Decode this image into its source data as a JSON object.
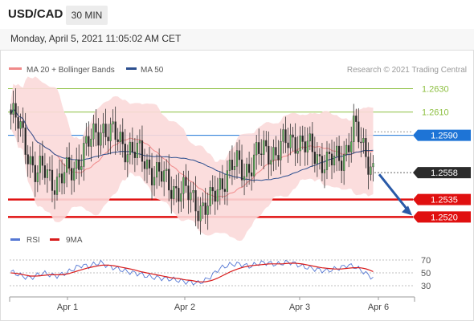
{
  "header": {
    "pair": "USD/CAD",
    "timeframe": "30 MIN",
    "timestamp": "Monday, April 5, 2021 11:05:02 AM CET"
  },
  "legend": {
    "ma20": {
      "label": "MA 20 + Bollinger Bands",
      "color": "#f08a8a"
    },
    "ma50": {
      "label": "MA 50",
      "color": "#2c4f8f"
    },
    "credit": "Research © 2021 Trading Central"
  },
  "colors": {
    "bull": "#55b055",
    "bear": "#222222",
    "band": "#fbd9d9",
    "support": "#e01010",
    "current": "#1e74d6",
    "resistance_green": "#8cbf3f",
    "arrow": "#2a5aa8"
  },
  "chart_data": {
    "type": "candlestick",
    "x_ticks": [
      "Apr 1",
      "Apr 2",
      "Apr 3",
      "Apr 6"
    ],
    "y_range": [
      1.2512,
      1.264
    ],
    "current_price": "1.2558",
    "levels": [
      {
        "value": 1.263,
        "label": "1.2630",
        "kind": "resistance-thin",
        "color": "#8cbf3f"
      },
      {
        "value": 1.261,
        "label": "1.2610",
        "kind": "resistance-thin",
        "color": "#8cbf3f"
      },
      {
        "value": 1.259,
        "label": "1.2590",
        "kind": "current-resistance",
        "color": "#1e74d6"
      },
      {
        "value": 1.2535,
        "label": "1.2535",
        "kind": "support",
        "color": "#e01010"
      },
      {
        "value": 1.252,
        "label": "1.2520",
        "kind": "support",
        "color": "#e01010"
      }
    ],
    "price_path": [
      1.2608,
      1.26,
      1.2588,
      1.257,
      1.2555,
      1.256,
      1.2556,
      1.255,
      1.2554,
      1.2558,
      1.2565,
      1.2575,
      1.2582,
      1.259,
      1.2598,
      1.2593,
      1.2588,
      1.2585,
      1.258,
      1.2576,
      1.2572,
      1.2566,
      1.256,
      1.2555,
      1.255,
      1.2546,
      1.2544,
      1.254,
      1.2536,
      1.253,
      1.2528,
      1.2532,
      1.2545,
      1.2555,
      1.2562,
      1.2564,
      1.256,
      1.2565,
      1.2572,
      1.2576,
      1.2578,
      1.2575,
      1.258,
      1.2585,
      1.2588,
      1.2582,
      1.2578,
      1.2575,
      1.257,
      1.2566,
      1.2568,
      1.2572,
      1.258,
      1.2595,
      1.2585,
      1.2575,
      1.256
    ],
    "rsi": {
      "label": "RSI",
      "ma_label": "9MA",
      "rsi_color": "#5578d4",
      "ma_color": "#d81c1c",
      "levels": [
        70,
        50,
        30
      ],
      "level_labels": [
        "70",
        "50",
        "30"
      ],
      "values": [
        52,
        48,
        44,
        42,
        46,
        50,
        47,
        45,
        48,
        52,
        58,
        62,
        60,
        64,
        66,
        60,
        58,
        55,
        52,
        50,
        48,
        45,
        43,
        42,
        41,
        40,
        38,
        36,
        35,
        34,
        38,
        45,
        55,
        60,
        63,
        64,
        62,
        60,
        64,
        66,
        65,
        63,
        65,
        67,
        64,
        60,
        58,
        56,
        54,
        53,
        56,
        58,
        62,
        60,
        55,
        48,
        42
      ],
      "ma_values": [
        50,
        49,
        47,
        45,
        45,
        46,
        47,
        47,
        47,
        49,
        52,
        55,
        58,
        60,
        62,
        62,
        61,
        59,
        57,
        55,
        52,
        50,
        48,
        46,
        44,
        42,
        41,
        39,
        38,
        36,
        36,
        38,
        42,
        47,
        52,
        56,
        59,
        61,
        62,
        63,
        64,
        64,
        64,
        65,
        65,
        64,
        62,
        60,
        58,
        57,
        56,
        56,
        57,
        58,
        58,
        56,
        52
      ]
    }
  }
}
